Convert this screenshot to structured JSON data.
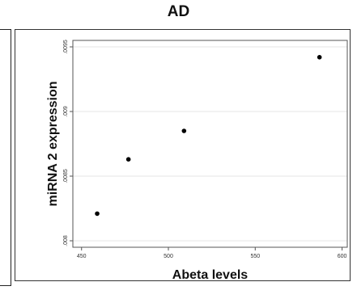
{
  "chart_data": {
    "type": "scatter",
    "title": "AD",
    "xlabel": "Abeta levels",
    "ylabel": "miRNA 2 expression",
    "xlim": [
      445,
      603
    ],
    "ylim": [
      0.00795,
      0.00955
    ],
    "x_ticks": [
      450,
      500,
      550,
      600
    ],
    "x_tick_labels": [
      "450",
      "500",
      "550",
      "600"
    ],
    "y_ticks": [
      0.008,
      0.0085,
      0.009,
      0.0095
    ],
    "y_tick_labels": [
      ".008",
      ".0085",
      ".009",
      ".0095"
    ],
    "grid": "horizontal",
    "legend": "none",
    "marker_color": "#000000",
    "points": [
      {
        "x": 459,
        "y": 0.00821
      },
      {
        "x": 477,
        "y": 0.00863
      },
      {
        "x": 509,
        "y": 0.00885
      },
      {
        "x": 587,
        "y": 0.00942
      }
    ]
  }
}
